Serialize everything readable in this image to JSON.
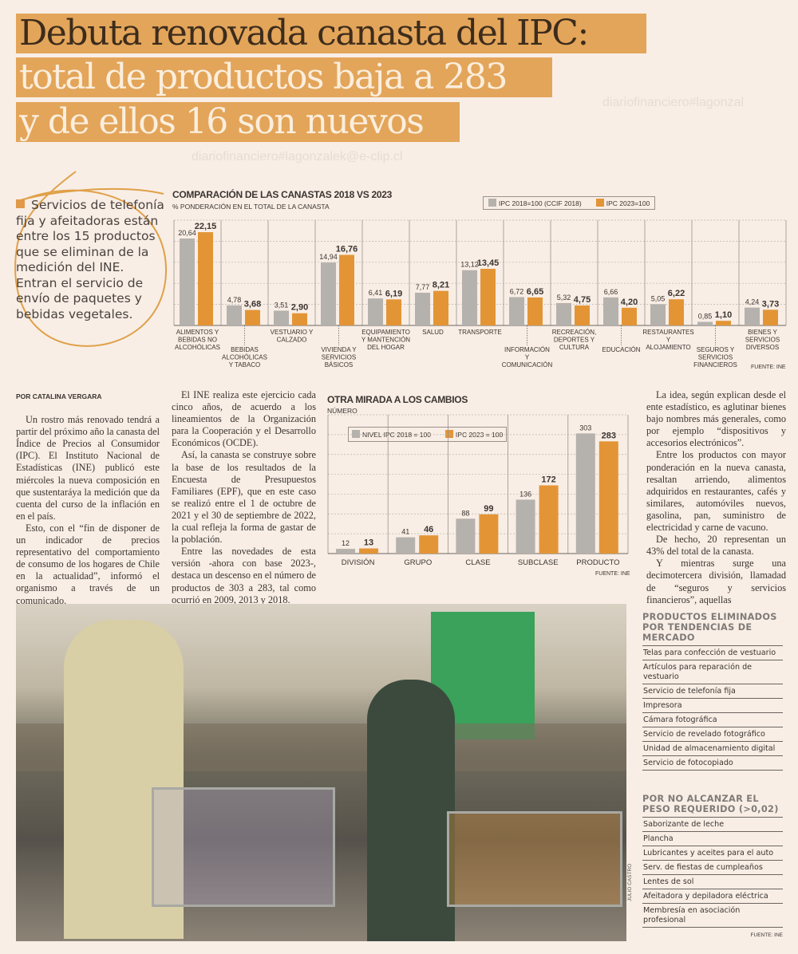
{
  "headline": {
    "line1": "Debuta renovada canasta del IPC:",
    "line2": "total de productos baja a 283",
    "line3": "y de ellos 16 son nuevos"
  },
  "watermark": {
    "left": "diariofinanciero#lagonzalek@e-clip.cl",
    "right": "diariofinanciero#lagonzal"
  },
  "pull_quote": "Servicios de telefonía fija y afeitadoras están entre los 15 productos que se eliminan de la medición del INE. Entran el servicio de envío de paquetes y bebidas vegetales.",
  "colors": {
    "accent": "#e3a55a",
    "series_2018": "#b5b1ad",
    "series_2023": "#e39536",
    "background": "#f8eee6"
  },
  "chart_data": [
    {
      "type": "bar",
      "title": "COMPARACIÓN DE LAS CANASTAS 2018 VS 2023",
      "subtitle": "% PONDERACIÓN EN EL TOTAL DE LA CANASTA",
      "source": "FUENTE: INE",
      "legend_position": "top-right",
      "grid": true,
      "ylim": [
        0,
        25
      ],
      "categories": [
        "ALIMENTOS Y BEBIDAS NO ALCOHÓLICAS",
        "BEBIDAS ALCOHÓLICAS Y TABACO",
        "VESTUARIO Y CALZADO",
        "VIVIENDA Y SERVICIOS BÁSICOS",
        "EQUIPAMIENTO Y MANTENCIÓN DEL HOGAR",
        "SALUD",
        "TRANSPORTE",
        "INFORMACIÓN Y COMUNICACIÓN",
        "RECREACIÓN, DEPORTES Y CULTURA",
        "EDUCACIÓN",
        "RESTAURANTES Y ALOJAMIENTO",
        "SEGUROS Y SERVICIOS FINANCIEROS",
        "BIENES Y SERVICIOS DIVERSOS"
      ],
      "series": [
        {
          "name": "IPC 2018=100 (CCIF 2018)",
          "values": [
            20.64,
            4.78,
            3.51,
            14.94,
            6.41,
            7.77,
            13.12,
            6.72,
            5.32,
            6.66,
            5.05,
            0.85,
            4.24
          ],
          "labels": [
            "20,64",
            "4,78",
            "3,51",
            "14,94",
            "6,41",
            "7,77",
            "13,12",
            "6,72",
            "5,32",
            "6,66",
            "5,05",
            "0,85",
            "4,24"
          ]
        },
        {
          "name": "IPC 2023=100",
          "values": [
            22.15,
            3.68,
            2.9,
            16.76,
            6.19,
            8.21,
            13.45,
            6.65,
            4.75,
            4.2,
            6.22,
            1.1,
            3.73
          ],
          "labels": [
            "22,15",
            "3,68",
            "2,90",
            "16,76",
            "6,19",
            "8,21",
            "13,45",
            "6,65",
            "4,75",
            "4,20",
            "6,22",
            "1,10",
            "3,73"
          ]
        }
      ]
    },
    {
      "type": "bar",
      "title": "OTRA MIRADA A LOS CAMBIOS",
      "subtitle": "NÚMERO",
      "source": "FUENTE: INE",
      "legend_position": "top-left",
      "grid": true,
      "ylim": [
        0,
        350
      ],
      "categories": [
        "DIVISIÓN",
        "GRUPO",
        "CLASE",
        "SUBCLASE",
        "PRODUCTO"
      ],
      "series": [
        {
          "name": "NIVEL IPC 2018 = 100",
          "values": [
            12,
            41,
            88,
            136,
            303
          ],
          "labels": [
            "12",
            "41",
            "88",
            "136",
            "303"
          ]
        },
        {
          "name": "IPC 2023 = 100",
          "values": [
            13,
            46,
            99,
            172,
            283
          ],
          "labels": [
            "13",
            "46",
            "99",
            "172",
            "283"
          ]
        }
      ]
    }
  ],
  "article": {
    "byline": "POR CATALINA VERGARA",
    "col1": [
      "Un rostro más renovado tendrá a partir del próximo año la canasta del Índice de Precios al Consumidor (IPC). El Instituto Nacional de Estadísticas (INE) publicó este miércoles la nueva composición en que sustentaráya la medición que da cuenta del curso de la inflación en en el país.",
      "Esto, con el “fin de disponer de un indicador de precios representativo del comportamiento de consumo de los hogares de Chile en la actualidad”, informó el organismo a través de un comunicado."
    ],
    "col2": [
      "El INE realiza este ejercicio cada cinco años, de acuerdo a los lineamientos de la Organización para la Cooperación y el Desarrollo Económicos (OCDE).",
      "Así, la canasta se construye sobre la base de los resultados de la Encuesta de Presupuestos Familiares (EPF), que en este caso se realizó entre el 1 de octubre de 2021 y el 30 de septiembre de 2022, la cual refleja la forma de gastar de la población.",
      "Entre las novedades de esta versión -ahora con base 2023-, destaca un descenso en el número de productos de 303 a 283, tal como ocurrió en 2009, 2013 y 2018."
    ],
    "col4": [
      "La idea, según explican desde el ente estadístico, es aglutinar bienes bajo nombres más generales, como por ejemplo “dispositivos y accesorios electrónicos”.",
      "Entre los productos con mayor ponderación en la nueva canasta, resaltan arriendo, alimentos adquiridos en restaurantes, cafés y similares, automóviles nuevos, gasolina, pan, suministro de electricidad y carne de vacuno.",
      "De hecho, 20 representan un 43% del total de la canasta.",
      "Y mientras surge una decimotercera división, llamadad de “seguros y servicios financieros”, aquellas"
    ]
  },
  "photo": {
    "credit": "JULIO CASTRO"
  },
  "sidebar": {
    "eliminated": {
      "title": "PRODUCTOS ELIMINADOS POR TENDENCIAS DE MERCADO",
      "items": [
        "Telas para confección de vestuario",
        "Artículos para reparación de vestuario",
        "Servicio de telefonía fija",
        "Impresora",
        "Cámara fotográfica",
        "Servicio de revelado fotográfico",
        "Unidad de almacenamiento digital",
        "Servicio de fotocopiado"
      ]
    },
    "low_weight": {
      "title": "POR NO ALCANZAR EL PESO REQUERIDO (>0,02)",
      "items": [
        "Saborizante de leche",
        "Plancha",
        "Lubricantes y aceites para el auto",
        "Serv. de fiestas de cumpleaños",
        "Lentes de sol",
        "Afeitadora y depiladora eléctrica",
        "Membresía en asociación profesional"
      ]
    },
    "source": "FUENTE: INE"
  }
}
